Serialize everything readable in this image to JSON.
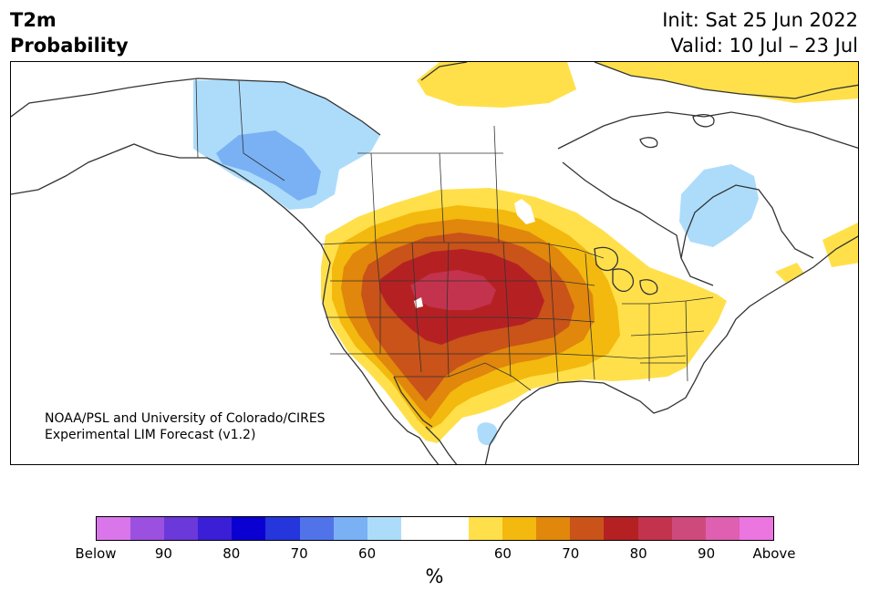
{
  "header": {
    "variable": "T2m",
    "product": "Probability",
    "init": "Init: Sat 25 Jun 2022",
    "valid": "Valid: 10 Jul – 23 Jul"
  },
  "credit": {
    "line1": "NOAA/PSL and University of Colorado/CIRES",
    "line2": "Experimental LIM Forecast (v1.2)"
  },
  "colorbar": {
    "unit": "%",
    "ticks": [
      "Below",
      "90",
      "80",
      "70",
      "60",
      "60",
      "70",
      "80",
      "90",
      "Above"
    ],
    "colors": [
      "#d977ea",
      "#9b50e0",
      "#6b38d9",
      "#3a1fd6",
      "#0a00d2",
      "#2536dc",
      "#5173ea",
      "#79b1f4",
      "#addcfb",
      "#ffffff",
      "#ffffff",
      "#ffe04a",
      "#f3b90e",
      "#e0870c",
      "#c95318",
      "#b52123",
      "#c3334e",
      "#cf4a7c",
      "#df5fb0",
      "#eb76e0"
    ]
  },
  "map": {
    "colors": {
      "above_60": "#ffe04a",
      "above_65": "#f3b90e",
      "above_70": "#e0870c",
      "above_75": "#c95318",
      "above_80": "#b52123",
      "above_85": "#c3334e",
      "below_60": "#addcfb",
      "below_65": "#79b1f4",
      "land_outline": "#333333"
    }
  }
}
